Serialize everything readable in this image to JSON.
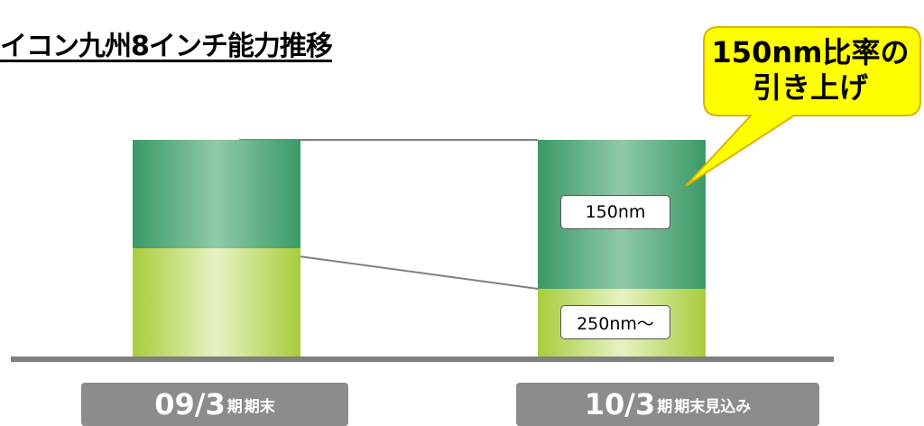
{
  "title": "イコン九州8インチ能力推移",
  "callout": {
    "line1": "150nm比率の",
    "line2": "引き上げ",
    "fill": "#ffff00",
    "border": "#e0b000"
  },
  "chart_data": {
    "type": "bar",
    "stacked": true,
    "categories": [
      "09/3期 期末",
      "10/3期 期末見込み"
    ],
    "category_labels": [
      {
        "big": "09/3",
        "small1": "期",
        "small2": " 期末"
      },
      {
        "big": "10/3",
        "small1": "期",
        "small2": " 期末見込み"
      }
    ],
    "series": [
      {
        "name": "250nm〜",
        "values": [
          40,
          25
        ],
        "color": "#a8cc3c"
      },
      {
        "name": "150nm",
        "values": [
          40,
          55
        ],
        "color": "#3a9a66"
      }
    ],
    "ylim": [
      0,
      80
    ],
    "grid": false,
    "legend": "none"
  },
  "colors": {
    "axis": "#7f7f7f",
    "connector": "#7f7f7f",
    "period_bg": "#8c8c8c"
  }
}
